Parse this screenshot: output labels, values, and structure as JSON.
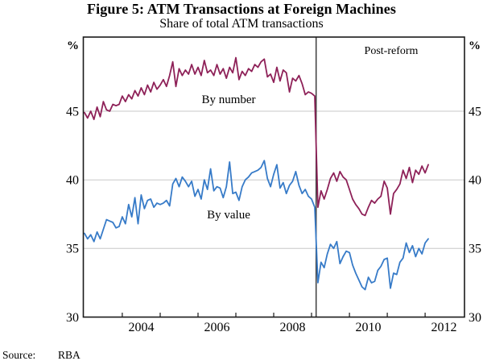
{
  "figure": {
    "title": "Figure 5: ATM Transactions at Foreign Machines",
    "subtitle": "Share of total ATM transactions",
    "source_label": "Source:",
    "source_value": "RBA"
  },
  "axis": {
    "unit_left": "%",
    "unit_right": "%",
    "y_tick_labels": [
      "45",
      "40",
      "35",
      "30"
    ],
    "x_tick_labels": [
      "2004",
      "2006",
      "2008",
      "2010",
      "2012"
    ]
  },
  "annotations": {
    "post_reform": "Post-reform",
    "series1_label": "By number",
    "series2_label": "By value"
  },
  "colors": {
    "by_number": "#8E2158",
    "by_value": "#377BC8",
    "grid": "#C8C8C8",
    "frame": "#1A1A1A",
    "divider": "#3D3D3D"
  },
  "chart_data": {
    "type": "line",
    "title": "Figure 5: ATM Transactions at Foreign Machines",
    "subtitle": "Share of total ATM transactions",
    "ylabel": "%",
    "xlim": [
      2002.97,
      2013.04
    ],
    "ylim": [
      30,
      50.4
    ],
    "y_gridlines": [
      35,
      40,
      45
    ],
    "x_ticks": [
      2004,
      2005,
      2006,
      2007,
      2008,
      2009,
      2010,
      2011,
      2012
    ],
    "x_label_positions": [
      2004.5,
      2006.5,
      2008.5,
      2010.5,
      2012.5
    ],
    "reform_line_x": 2009.12,
    "x_start": 2003.0,
    "x_step": 0.0833333,
    "frequency": "monthly",
    "series": [
      {
        "name": "By number",
        "color": "#8E2158",
        "values": [
          44.9,
          44.5,
          45.0,
          44.4,
          45.3,
          44.6,
          45.7,
          45.1,
          45.0,
          45.5,
          45.4,
          45.5,
          46.1,
          45.7,
          46.2,
          45.9,
          46.5,
          46.1,
          46.7,
          46.2,
          46.9,
          46.4,
          47.1,
          46.6,
          46.9,
          47.3,
          46.8,
          47.6,
          48.6,
          46.8,
          48.1,
          47.6,
          48.0,
          47.7,
          48.4,
          47.7,
          48.2,
          47.6,
          48.7,
          47.8,
          48.0,
          47.6,
          48.4,
          47.7,
          48.1,
          47.4,
          48.2,
          47.8,
          48.9,
          47.3,
          47.9,
          47.6,
          48.1,
          47.9,
          48.4,
          48.2,
          48.6,
          48.8,
          47.5,
          47.7,
          47.1,
          48.2,
          47.2,
          48.0,
          47.8,
          46.4,
          47.4,
          47.2,
          47.6,
          47.0,
          46.2,
          46.4,
          46.3,
          46.1,
          38.0,
          39.2,
          38.6,
          39.3,
          40.1,
          40.5,
          39.9,
          40.6,
          40.2,
          40.0,
          39.3,
          38.6,
          38.2,
          37.9,
          37.5,
          37.4,
          38.0,
          38.5,
          38.3,
          38.6,
          38.8,
          39.9,
          39.4,
          37.5,
          39.0,
          39.3,
          39.7,
          40.7,
          40.1,
          40.9,
          39.8,
          40.7,
          40.4,
          41.0,
          40.5,
          41.1
        ]
      },
      {
        "name": "By value",
        "color": "#377BC8",
        "values": [
          36.1,
          35.7,
          36.0,
          35.5,
          36.2,
          35.7,
          36.4,
          37.1,
          37.0,
          36.9,
          36.5,
          36.6,
          37.3,
          36.8,
          38.2,
          37.3,
          38.7,
          36.8,
          38.9,
          37.9,
          38.5,
          38.6,
          38.0,
          38.3,
          38.2,
          38.3,
          38.5,
          38.1,
          39.7,
          40.1,
          39.5,
          40.2,
          39.9,
          39.5,
          39.9,
          38.8,
          39.3,
          38.6,
          40.0,
          39.3,
          40.8,
          39.2,
          39.5,
          39.4,
          38.7,
          39.5,
          41.3,
          39.0,
          39.1,
          38.5,
          39.5,
          40.0,
          40.2,
          40.5,
          40.6,
          40.7,
          40.9,
          41.4,
          40.1,
          39.5,
          40.4,
          41.1,
          39.4,
          39.8,
          39.0,
          39.6,
          39.9,
          40.6,
          39.6,
          39.0,
          39.3,
          38.8,
          38.6,
          38.0,
          32.5,
          34.0,
          33.6,
          34.6,
          35.3,
          35.0,
          35.5,
          33.9,
          34.4,
          34.8,
          34.7,
          33.8,
          33.2,
          32.7,
          32.2,
          32.0,
          32.9,
          32.5,
          32.6,
          33.4,
          33.7,
          34.2,
          34.3,
          32.1,
          33.2,
          33.1,
          34.0,
          34.3,
          35.4,
          34.7,
          35.2,
          34.4,
          35.0,
          34.6,
          35.4,
          35.7
        ]
      }
    ]
  }
}
